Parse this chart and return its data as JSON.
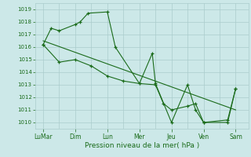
{
  "background_color": "#cce8e8",
  "grid_color": "#aacccc",
  "line_color": "#1a6b1a",
  "xlabel": "Pression niveau de la mer( hPa )",
  "ylim": [
    1009.5,
    1019.5
  ],
  "yticks": [
    1010,
    1011,
    1012,
    1013,
    1014,
    1015,
    1016,
    1017,
    1018,
    1019
  ],
  "xtick_labels": [
    "LuMar",
    "Dim",
    "Lun",
    "Mer",
    "Jeu",
    "Ven",
    "Sam"
  ],
  "xtick_positions": [
    0,
    2,
    4,
    6,
    8,
    10,
    12
  ],
  "series1_x": [
    0,
    0.5,
    1.0,
    2.0,
    2.3,
    2.8,
    4.0,
    4.5,
    6.0,
    6.8,
    7.0,
    8.0,
    9.0,
    9.5,
    10.0,
    11.5,
    12.0
  ],
  "series1_y": [
    1016.2,
    1017.5,
    1017.3,
    1017.8,
    1018.0,
    1018.7,
    1018.8,
    1016.0,
    1013.1,
    1015.5,
    1013.1,
    1010.0,
    1013.0,
    1011.0,
    1010.0,
    1010.0,
    1012.7
  ],
  "series2_x": [
    0,
    1.0,
    2.0,
    3.0,
    4.0,
    5.0,
    6.0,
    7.0,
    7.5,
    8.0,
    9.0,
    9.5,
    10.0,
    11.5,
    12.0
  ],
  "series2_y": [
    1016.2,
    1014.8,
    1015.0,
    1014.5,
    1013.7,
    1013.3,
    1013.1,
    1013.0,
    1011.5,
    1011.0,
    1011.3,
    1011.5,
    1010.0,
    1010.2,
    1012.7
  ],
  "trend_x": [
    0,
    12
  ],
  "trend_y": [
    1016.5,
    1011.0
  ]
}
